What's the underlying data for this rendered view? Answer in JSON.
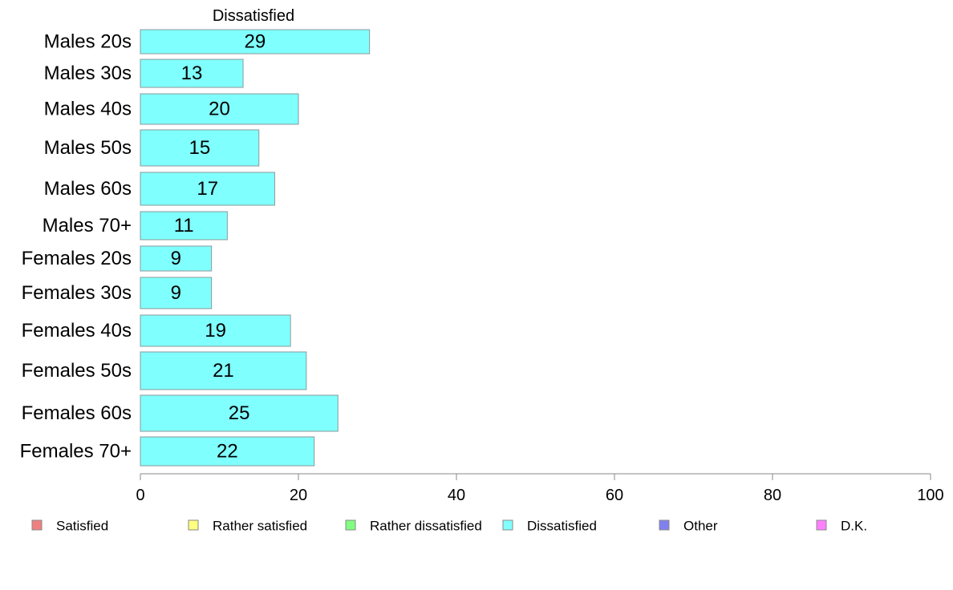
{
  "chart_data": {
    "type": "bar",
    "orientation": "horizontal",
    "series_title": "Dissatisfied",
    "categories": [
      "Males 20s",
      "Males 30s",
      "Males 40s",
      "Males 50s",
      "Males 60s",
      "Males 70+",
      "Females 20s",
      "Females 30s",
      "Females 40s",
      "Females 50s",
      "Females 60s",
      "Females 70+"
    ],
    "series": [
      {
        "name": "Dissatisfied",
        "color": "#80ffff",
        "values": [
          29,
          13,
          20,
          15,
          17,
          11,
          9,
          9,
          19,
          21,
          25,
          22
        ],
        "labels": [
          "29",
          "13",
          "20",
          "15",
          "17",
          "11",
          "9",
          "9",
          "19",
          "21",
          "25",
          "22"
        ]
      }
    ],
    "xlim": [
      0,
      100
    ],
    "xticks": [
      "0",
      "20",
      "40",
      "60",
      "80",
      "100"
    ],
    "xtick_values": [
      0,
      20,
      40,
      60,
      80,
      100
    ],
    "grid": false,
    "legend_placement": "bottom",
    "legend": [
      {
        "label": "Satisfied",
        "color": "#f08080"
      },
      {
        "label": "Rather satisfied",
        "color": "#ffff80"
      },
      {
        "label": "Rather dissatisfied",
        "color": "#80ff80"
      },
      {
        "label": "Dissatisfied",
        "color": "#80ffff"
      },
      {
        "label": "Other",
        "color": "#8080f0"
      },
      {
        "label": "D.K.",
        "color": "#ff80ff"
      }
    ]
  }
}
